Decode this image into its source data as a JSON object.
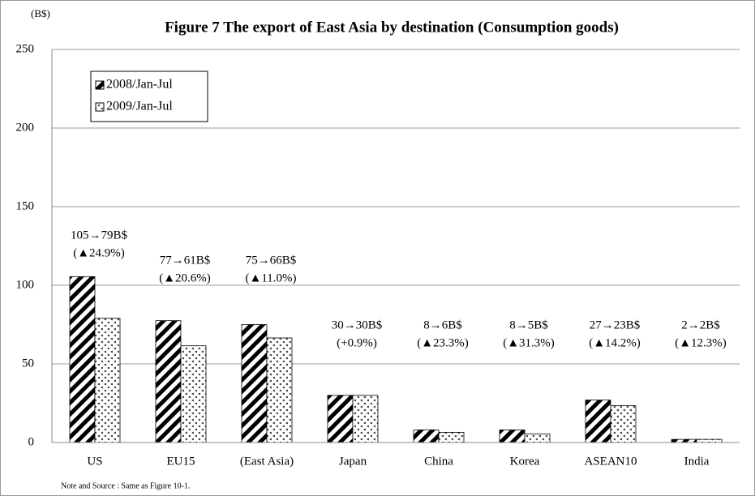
{
  "chart_data": {
    "type": "bar",
    "title": "Figure 7  The export of East Asia by destination (Consumption goods)",
    "y_unit": "(B$)",
    "note": "Note and Source : Same as Figure 10-1.",
    "categories": [
      "US",
      "EU15",
      "(East Asia)",
      "Japan",
      "China",
      "Korea",
      "ASEAN10",
      "India"
    ],
    "series": [
      {
        "name": "2008/Jan-Jul",
        "color": "#000000",
        "pattern": "diagonal",
        "values": [
          105.5,
          77.5,
          75,
          30,
          8,
          8,
          27,
          2
        ]
      },
      {
        "name": "2009/Jan-Jul",
        "color": "#000000",
        "pattern": "dots",
        "values": [
          79,
          61.5,
          66.5,
          30,
          6.5,
          5.5,
          23.5,
          2
        ]
      }
    ],
    "annotations": [
      [
        "105→79B$",
        "(▲24.9%)"
      ],
      [
        "77→61B$",
        "(▲20.6%)"
      ],
      [
        "75→66B$",
        "(▲11.0%)"
      ],
      [
        "30→30B$",
        "(+0.9%)"
      ],
      [
        "8→6B$",
        "(▲23.3%)"
      ],
      [
        "8→5B$",
        "(▲31.3%)"
      ],
      [
        "27→23B$",
        "(▲14.2%)"
      ],
      [
        "2→2B$",
        "(▲12.3%)"
      ]
    ],
    "ylim": [
      0,
      250
    ],
    "yticks": [
      0,
      50,
      100,
      150,
      200,
      250
    ],
    "grid": true,
    "legend": "upper left"
  }
}
